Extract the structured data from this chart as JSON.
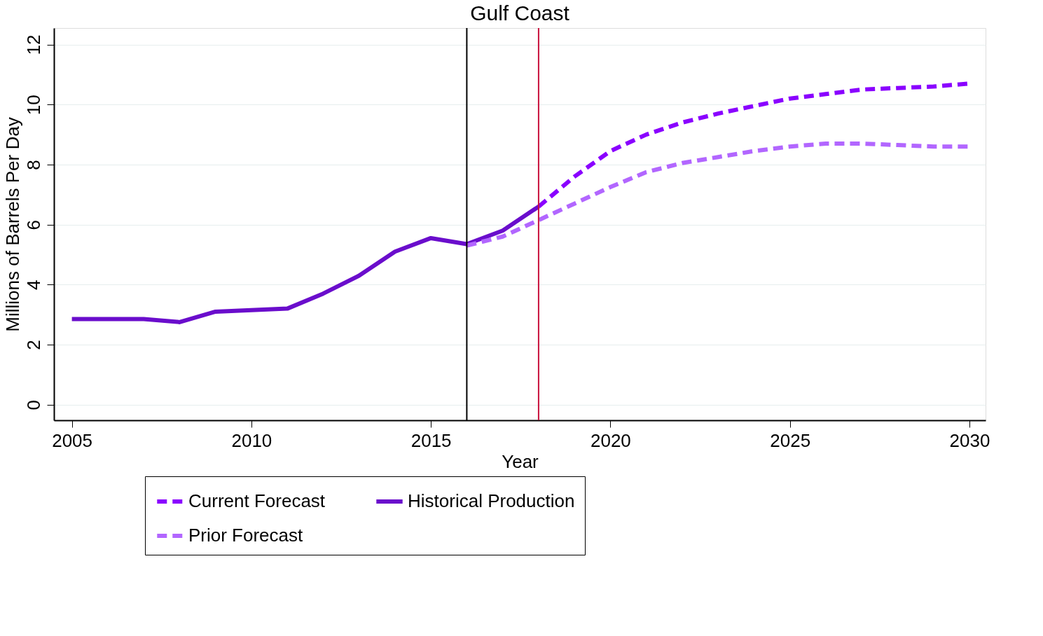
{
  "chart_data": {
    "type": "line",
    "title": "Gulf Coast",
    "xlabel": "Year",
    "ylabel": "Millions of Barrels Per Day",
    "xlim": [
      2004.5,
      2030.45
    ],
    "xticks": [
      2005,
      2010,
      2015,
      2020,
      2025,
      2030
    ],
    "ylim": [
      -0.52,
      12.55
    ],
    "yticks": [
      0,
      2,
      4,
      6,
      8,
      10,
      12
    ],
    "grid": "y",
    "legend": "bottom",
    "ref_lines": [
      {
        "axis": "x",
        "value": 2016,
        "color": "#000000"
      },
      {
        "axis": "x",
        "value": 2018,
        "color": "#c8103c"
      }
    ],
    "series": [
      {
        "name": "Current Forecast",
        "color": "#8a00ff",
        "line_style": "dashed",
        "x": [
          2018,
          2019,
          2020,
          2021,
          2022,
          2023,
          2024,
          2025,
          2026,
          2027,
          2028,
          2029,
          2030
        ],
        "values": [
          6.6,
          7.6,
          8.45,
          9.0,
          9.4,
          9.7,
          9.95,
          10.2,
          10.35,
          10.5,
          10.55,
          10.6,
          10.7
        ]
      },
      {
        "name": "Historical Production",
        "color": "#6a0dcc",
        "line_style": "solid",
        "x": [
          2005,
          2006,
          2007,
          2008,
          2009,
          2010,
          2011,
          2012,
          2013,
          2014,
          2015,
          2016,
          2017,
          2018
        ],
        "values": [
          2.85,
          2.85,
          2.85,
          2.75,
          3.1,
          3.15,
          3.2,
          3.7,
          4.3,
          5.1,
          5.55,
          5.35,
          5.8,
          6.6
        ]
      },
      {
        "name": "Prior Forecast",
        "color": "#b266ff",
        "line_style": "dashed",
        "x": [
          2016,
          2017,
          2018,
          2019,
          2020,
          2021,
          2022,
          2023,
          2024,
          2025,
          2026,
          2027,
          2028,
          2029,
          2030
        ],
        "values": [
          5.3,
          5.6,
          6.15,
          6.7,
          7.25,
          7.75,
          8.05,
          8.25,
          8.45,
          8.6,
          8.7,
          8.7,
          8.65,
          8.6,
          8.6
        ]
      }
    ]
  }
}
